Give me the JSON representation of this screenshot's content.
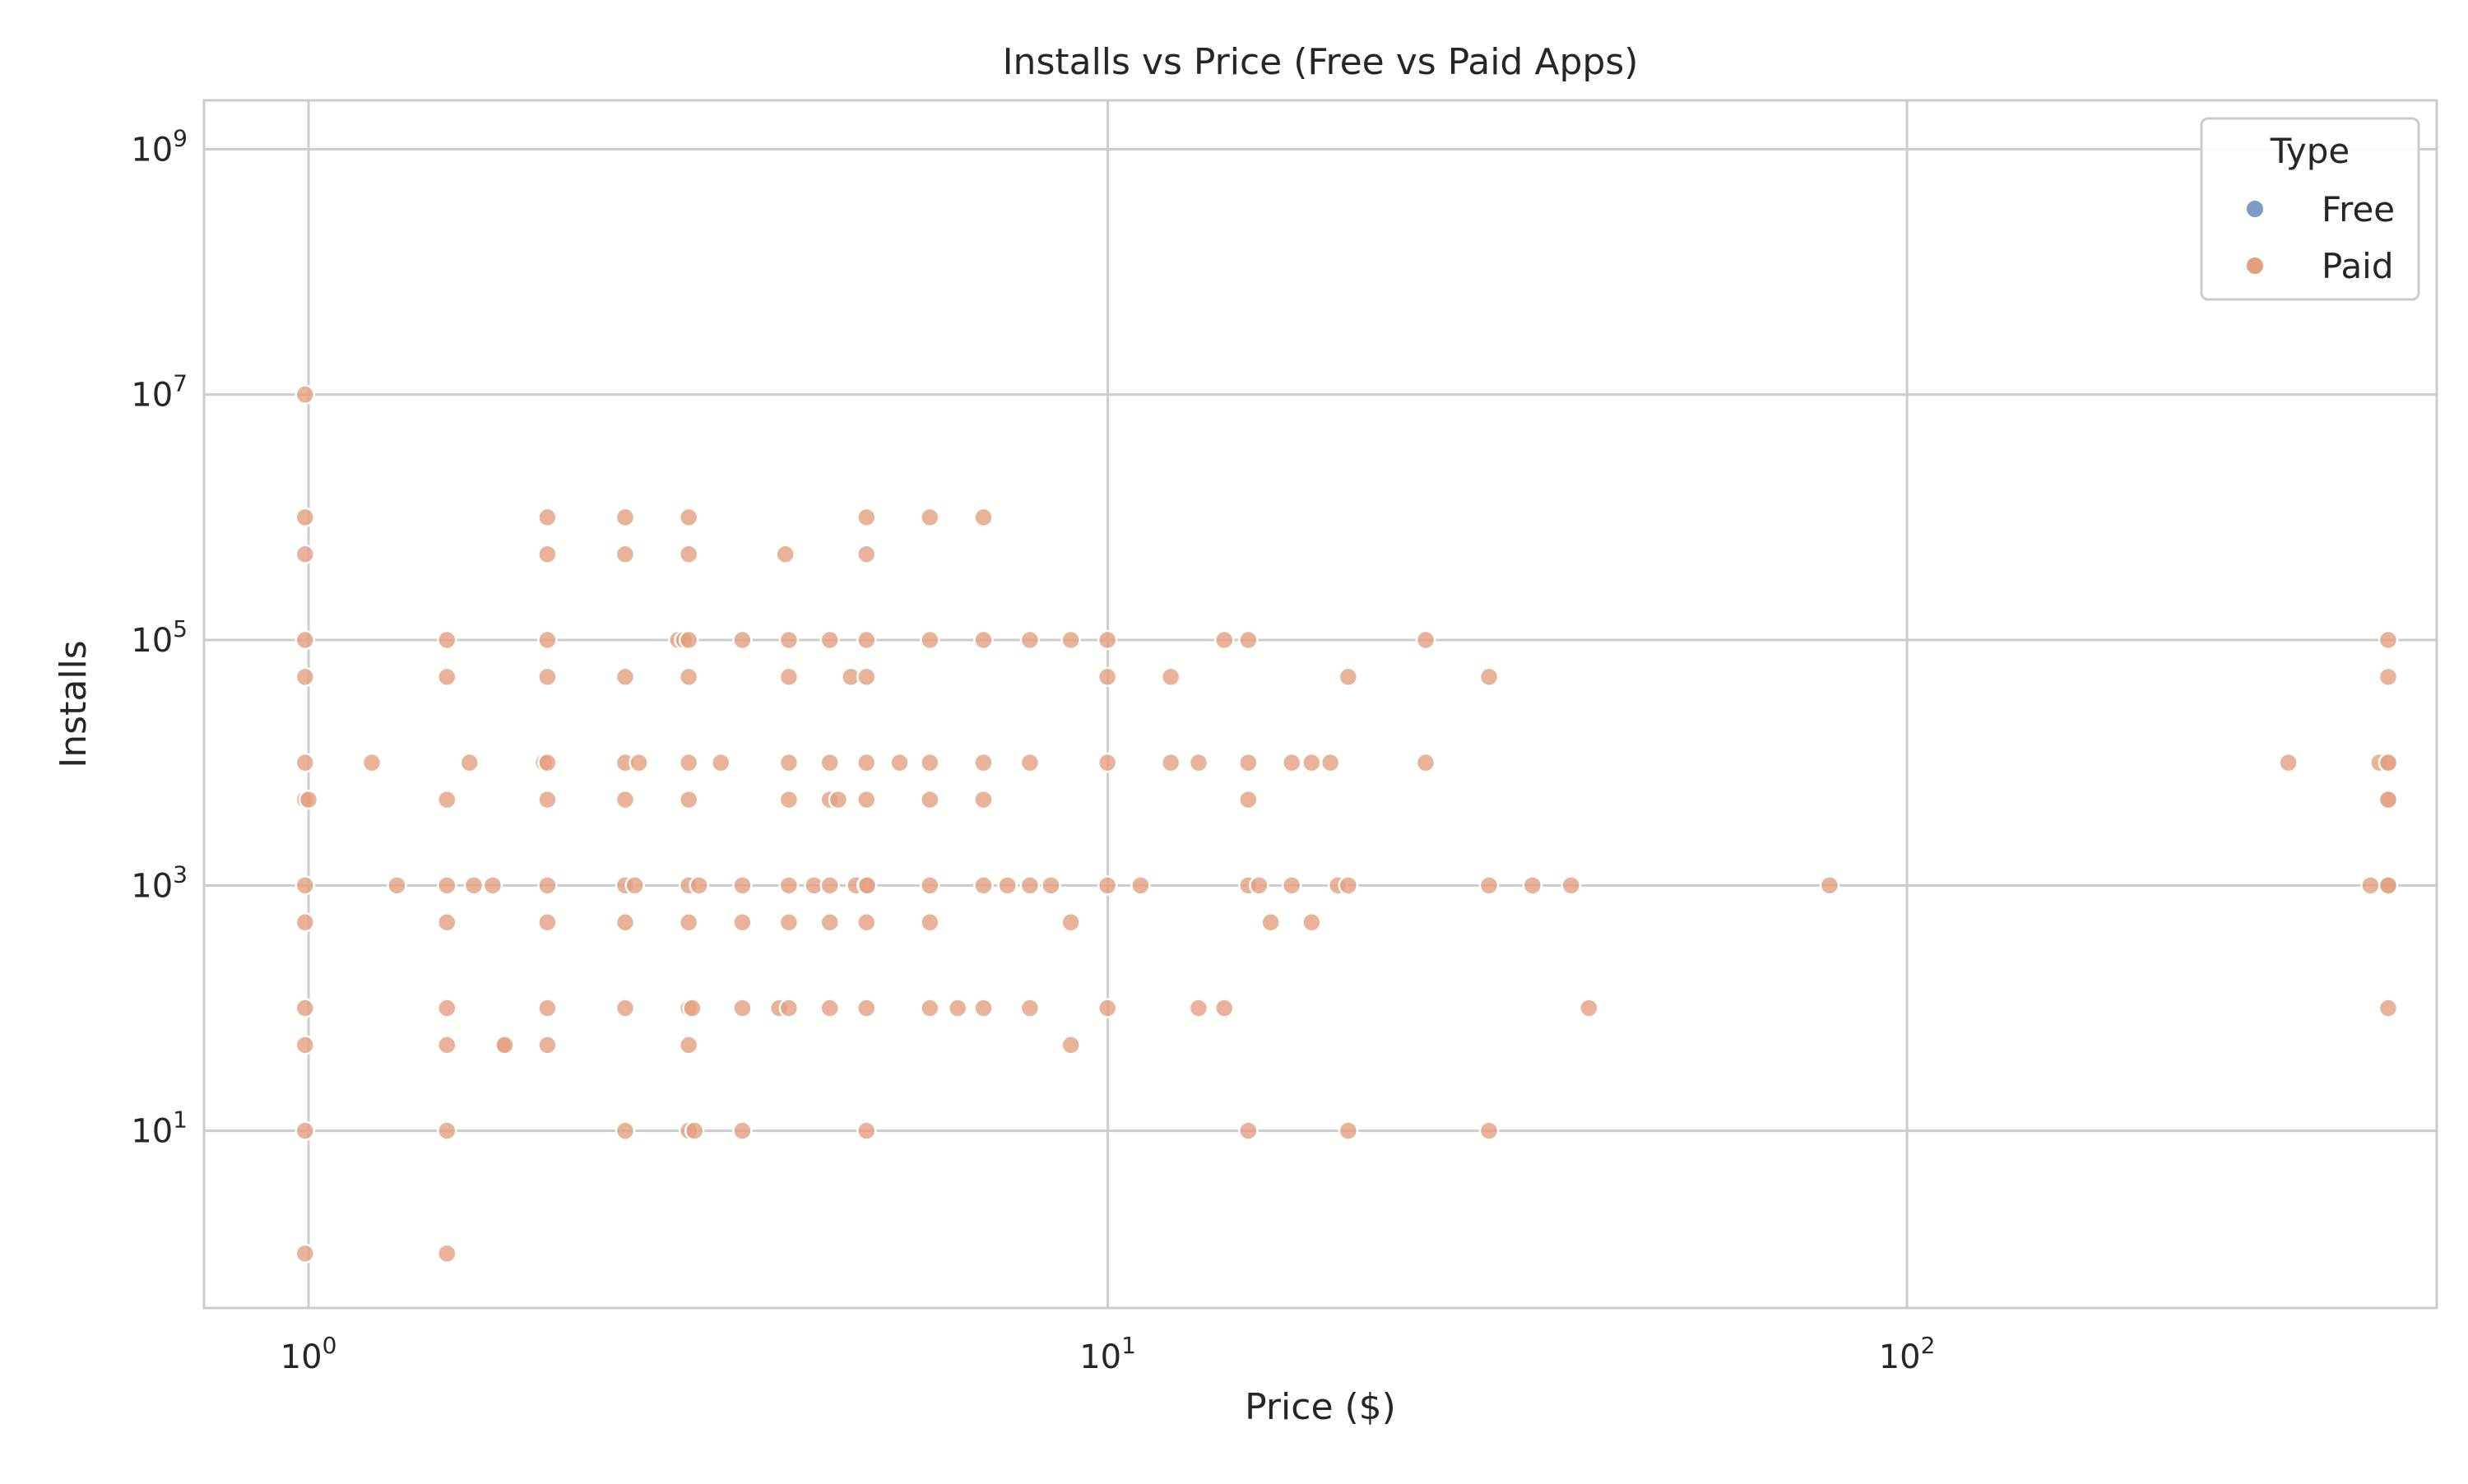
{
  "chart_data": {
    "type": "scatter",
    "title": "Installs vs Price (Free vs Paid Apps)",
    "xlabel": "Price ($)",
    "ylabel": "Installs",
    "xscale": "log",
    "yscale": "log",
    "xlim": [
      0.74,
      460
    ],
    "ylim": [
      0.36,
      2500000000
    ],
    "x_ticks": [
      {
        "value": 1,
        "base": "10",
        "exp": "0"
      },
      {
        "value": 10,
        "base": "10",
        "exp": "1"
      },
      {
        "value": 100,
        "base": "10",
        "exp": "2"
      }
    ],
    "y_ticks": [
      {
        "value": 10,
        "base": "10",
        "exp": "1"
      },
      {
        "value": 1000,
        "base": "10",
        "exp": "3"
      },
      {
        "value": 100000,
        "base": "10",
        "exp": "5"
      },
      {
        "value": 10000000,
        "base": "10",
        "exp": "7"
      },
      {
        "value": 1000000000,
        "base": "10",
        "exp": "9"
      }
    ],
    "grid": true,
    "legend": {
      "title": "Type",
      "placement": "top-right",
      "entries": [
        {
          "label": "Free",
          "color": "#7c9bc6"
        },
        {
          "label": "Paid",
          "color": "#e3a07f"
        }
      ]
    },
    "series": [
      {
        "name": "Free",
        "color": "#7c9bc6",
        "points": []
      },
      {
        "name": "Paid",
        "color": "#e3a07f",
        "points": [
          [
            0.99,
            10000000
          ],
          [
            0.99,
            1000000
          ],
          [
            0.99,
            500000
          ],
          [
            0.99,
            100000
          ],
          [
            0.99,
            50000
          ],
          [
            0.99,
            10000
          ],
          [
            0.99,
            5000
          ],
          [
            1.0,
            5000
          ],
          [
            0.99,
            1000
          ],
          [
            0.99,
            500
          ],
          [
            0.99,
            100
          ],
          [
            0.99,
            50
          ],
          [
            0.99,
            10
          ],
          [
            0.99,
            1
          ],
          [
            1.2,
            10000
          ],
          [
            1.29,
            1000
          ],
          [
            1.49,
            100000
          ],
          [
            1.49,
            50000
          ],
          [
            1.49,
            5000
          ],
          [
            1.49,
            1000
          ],
          [
            1.49,
            500
          ],
          [
            1.49,
            100
          ],
          [
            1.49,
            50
          ],
          [
            1.49,
            10
          ],
          [
            1.49,
            1
          ],
          [
            1.59,
            10000
          ],
          [
            1.61,
            1000
          ],
          [
            1.7,
            1000
          ],
          [
            1.75,
            50
          ],
          [
            1.76,
            50
          ],
          [
            1.97,
            10000
          ],
          [
            1.99,
            1000000
          ],
          [
            1.99,
            500000
          ],
          [
            1.99,
            100000
          ],
          [
            1.99,
            50000
          ],
          [
            1.99,
            10000
          ],
          [
            1.99,
            5000
          ],
          [
            1.99,
            1000
          ],
          [
            1.99,
            500
          ],
          [
            1.99,
            100
          ],
          [
            1.99,
            50
          ],
          [
            2.49,
            1000000
          ],
          [
            2.49,
            500000
          ],
          [
            2.49,
            50000
          ],
          [
            2.49,
            10000
          ],
          [
            2.49,
            5000
          ],
          [
            2.49,
            1000
          ],
          [
            2.49,
            500
          ],
          [
            2.49,
            100
          ],
          [
            2.49,
            10
          ],
          [
            2.56,
            1000
          ],
          [
            2.59,
            10000
          ],
          [
            2.9,
            100000
          ],
          [
            2.95,
            100000
          ],
          [
            2.99,
            1000000
          ],
          [
            2.99,
            500000
          ],
          [
            2.99,
            100000
          ],
          [
            2.99,
            50000
          ],
          [
            2.99,
            10000
          ],
          [
            2.99,
            5000
          ],
          [
            2.99,
            1000
          ],
          [
            2.99,
            500
          ],
          [
            2.99,
            100
          ],
          [
            2.99,
            50
          ],
          [
            2.99,
            10
          ],
          [
            3.02,
            100
          ],
          [
            3.04,
            10
          ],
          [
            3.08,
            1000
          ],
          [
            3.28,
            10000
          ],
          [
            3.49,
            100000
          ],
          [
            3.49,
            1000
          ],
          [
            3.49,
            500
          ],
          [
            3.49,
            100
          ],
          [
            3.49,
            10
          ],
          [
            3.88,
            100
          ],
          [
            3.95,
            500000
          ],
          [
            3.99,
            100000
          ],
          [
            3.99,
            50000
          ],
          [
            3.99,
            10000
          ],
          [
            3.99,
            5000
          ],
          [
            3.99,
            1000
          ],
          [
            3.99,
            500
          ],
          [
            3.99,
            100
          ],
          [
            4.29,
            1000
          ],
          [
            4.49,
            100000
          ],
          [
            4.49,
            10000
          ],
          [
            4.49,
            5000
          ],
          [
            4.49,
            1000
          ],
          [
            4.49,
            500
          ],
          [
            4.49,
            100
          ],
          [
            4.6,
            5000
          ],
          [
            4.77,
            50000
          ],
          [
            4.84,
            1000
          ],
          [
            4.99,
            1000000
          ],
          [
            4.99,
            500000
          ],
          [
            4.99,
            100000
          ],
          [
            4.99,
            50000
          ],
          [
            4.99,
            10000
          ],
          [
            4.99,
            5000
          ],
          [
            4.99,
            1000
          ],
          [
            4.99,
            500
          ],
          [
            4.99,
            100
          ],
          [
            4.99,
            10
          ],
          [
            5.0,
            1000
          ],
          [
            5.49,
            10000
          ],
          [
            5.99,
            1000000
          ],
          [
            5.99,
            100000
          ],
          [
            5.99,
            10000
          ],
          [
            5.99,
            5000
          ],
          [
            5.99,
            1000
          ],
          [
            5.99,
            500
          ],
          [
            5.99,
            100
          ],
          [
            6.49,
            100
          ],
          [
            6.99,
            1000000
          ],
          [
            6.99,
            100000
          ],
          [
            6.99,
            10000
          ],
          [
            6.99,
            5000
          ],
          [
            6.99,
            1000
          ],
          [
            6.99,
            100
          ],
          [
            7.49,
            1000
          ],
          [
            7.99,
            100000
          ],
          [
            7.99,
            10000
          ],
          [
            7.99,
            1000
          ],
          [
            7.99,
            100
          ],
          [
            8.49,
            1000
          ],
          [
            8.99,
            100000
          ],
          [
            8.99,
            500
          ],
          [
            8.99,
            50
          ],
          [
            9.99,
            100000
          ],
          [
            9.99,
            50000
          ],
          [
            9.99,
            10000
          ],
          [
            9.99,
            1000
          ],
          [
            9.99,
            100
          ],
          [
            10.99,
            1000
          ],
          [
            11.99,
            50000
          ],
          [
            11.99,
            10000
          ],
          [
            12.99,
            10000
          ],
          [
            12.99,
            100
          ],
          [
            13.99,
            100000
          ],
          [
            13.99,
            100
          ],
          [
            14.99,
            100000
          ],
          [
            14.99,
            10000
          ],
          [
            14.99,
            5000
          ],
          [
            14.99,
            1000
          ],
          [
            14.99,
            10
          ],
          [
            15.46,
            1000
          ],
          [
            15.99,
            500
          ],
          [
            16.99,
            10000
          ],
          [
            16.99,
            1000
          ],
          [
            17.99,
            10000
          ],
          [
            17.99,
            500
          ],
          [
            18.99,
            10000
          ],
          [
            19.4,
            1000
          ],
          [
            19.99,
            50000
          ],
          [
            19.99,
            1000
          ],
          [
            19.99,
            10
          ],
          [
            24.99,
            100000
          ],
          [
            24.99,
            10000
          ],
          [
            29.99,
            50000
          ],
          [
            29.99,
            1000
          ],
          [
            29.99,
            10
          ],
          [
            33.99,
            1000
          ],
          [
            37.99,
            1000
          ],
          [
            39.99,
            100
          ],
          [
            79.99,
            1000
          ],
          [
            299.99,
            10000
          ],
          [
            379.99,
            1000
          ],
          [
            389.99,
            10000
          ],
          [
            399.99,
            100000
          ],
          [
            399.99,
            50000
          ],
          [
            399.99,
            10000
          ],
          [
            399.99,
            5000
          ],
          [
            399.99,
            1000
          ],
          [
            399.99,
            100
          ],
          [
            400.0,
            10000
          ],
          [
            400.0,
            5000
          ],
          [
            400.0,
            1000
          ]
        ]
      }
    ]
  }
}
